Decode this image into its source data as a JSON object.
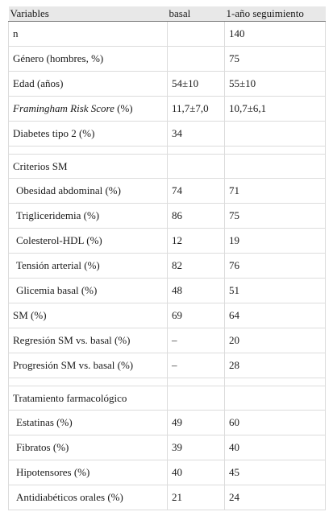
{
  "table": {
    "headers": [
      "Variables",
      "basal",
      "1-año seguimiento"
    ],
    "rows": [
      {
        "label": "n",
        "basal": "",
        "seg": "140"
      },
      {
        "label": "Género (hombres, %)",
        "basal": "",
        "seg": "75"
      },
      {
        "label": "Edad (años)",
        "basal": "54±10",
        "seg": "55±10"
      },
      {
        "label_italic": "Framingham Risk Score",
        "label_rest": " (%)",
        "basal": "11,7±7,0",
        "seg": "10,7±6,1"
      },
      {
        "label": "Diabetes tipo 2 (%)",
        "basal": "34",
        "seg": ""
      },
      {
        "section": "Criterios SM"
      },
      {
        "label": "Obesidad abdominal (%)",
        "basal": "74",
        "seg": "71"
      },
      {
        "label": "Trigliceridemia (%)",
        "basal": "86",
        "seg": "75"
      },
      {
        "label": "Colesterol-HDL (%)",
        "basal": "12",
        "seg": "19"
      },
      {
        "label": "Tensión arterial (%)",
        "basal": "82",
        "seg": "76"
      },
      {
        "label": "Glicemia basal (%)",
        "basal": "48",
        "seg": "51"
      },
      {
        "label": "SM (%)",
        "basal": "69",
        "seg": "64"
      },
      {
        "label": "Regresión SM vs. basal (%)",
        "basal": "–",
        "seg": "20"
      },
      {
        "label": "Progresión SM vs. basal (%)",
        "basal": "–",
        "seg": "28"
      },
      {
        "section": "Tratamiento farmacológico"
      },
      {
        "label": "Estatinas (%)",
        "basal": "49",
        "seg": "60"
      },
      {
        "label": "Fibratos (%)",
        "basal": "39",
        "seg": "40"
      },
      {
        "label": "Hipotensores (%)",
        "basal": "40",
        "seg": "45"
      },
      {
        "label": "Antidiabéticos orales (%)",
        "basal": "21",
        "seg": "24"
      }
    ]
  }
}
